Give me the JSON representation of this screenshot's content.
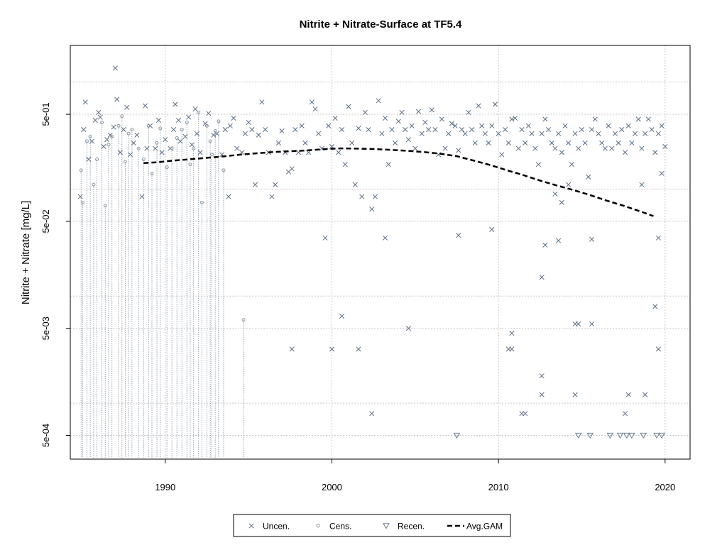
{
  "chart_data": {
    "type": "scatter",
    "title": "Nitrite + Nitrate-Surface at TF5.4",
    "xlabel": "",
    "ylabel": "Nitrite + Nitrate [mg/L]",
    "x_unit": "decimal year",
    "y_scale": "log",
    "xlim": [
      1984.3,
      2021.5
    ],
    "ylim": [
      0.0003,
      2.2
    ],
    "grid": true,
    "legend_position": "bottom-center",
    "x_ticks": [
      {
        "value": 1990,
        "label": "1990"
      },
      {
        "value": 2000,
        "label": "2000"
      },
      {
        "value": 2010,
        "label": "2010"
      },
      {
        "value": 2020,
        "label": "2020"
      }
    ],
    "y_ticks": [
      {
        "value": 0.0005,
        "label": "5e-04"
      },
      {
        "value": 0.005,
        "label": "5e-03"
      },
      {
        "value": 0.05,
        "label": "5e-02"
      },
      {
        "value": 0.5,
        "label": "5e-01"
      }
    ],
    "y_gridlines": [
      0.001,
      0.01,
      0.1,
      1
    ],
    "legend": [
      {
        "key": "uncensored",
        "label": "Uncen."
      },
      {
        "key": "censored",
        "label": "Cens."
      },
      {
        "key": "recensored",
        "label": "Recen."
      },
      {
        "key": "gam",
        "label": "Avg.GAM"
      }
    ],
    "series": [
      {
        "key": "uncensored",
        "marker": "x",
        "color": "#5a6e85",
        "points": [
          [
            1984.9,
            0.085
          ],
          [
            1985.1,
            0.36
          ],
          [
            1985.2,
            0.65
          ],
          [
            1985.4,
            0.19
          ],
          [
            1985.6,
            0.28
          ],
          [
            1985.8,
            0.44
          ],
          [
            1986.0,
            0.52
          ],
          [
            1986.1,
            0.47
          ],
          [
            1986.3,
            0.25
          ],
          [
            1986.5,
            0.29
          ],
          [
            1986.7,
            0.32
          ],
          [
            1986.9,
            0.38
          ],
          [
            1987.0,
            1.35
          ],
          [
            1987.1,
            0.69
          ],
          [
            1987.3,
            0.22
          ],
          [
            1987.5,
            0.36
          ],
          [
            1987.7,
            0.58
          ],
          [
            1987.9,
            0.21
          ],
          [
            1988.1,
            0.27
          ],
          [
            1988.3,
            0.32
          ],
          [
            1988.6,
            0.085
          ],
          [
            1988.8,
            0.6
          ],
          [
            1988.9,
            0.24
          ],
          [
            1989.1,
            0.39
          ],
          [
            1989.4,
            0.24
          ],
          [
            1989.6,
            0.44
          ],
          [
            1989.8,
            0.22
          ],
          [
            1990.0,
            0.29
          ],
          [
            1990.3,
            0.24
          ],
          [
            1990.5,
            0.36
          ],
          [
            1990.6,
            0.62
          ],
          [
            1990.8,
            0.44
          ],
          [
            1990.9,
            0.28
          ],
          [
            1991.2,
            0.31
          ],
          [
            1991.4,
            0.47
          ],
          [
            1991.6,
            0.26
          ],
          [
            1991.8,
            0.56
          ],
          [
            1991.9,
            0.33
          ],
          [
            1992.1,
            0.22
          ],
          [
            1992.4,
            0.41
          ],
          [
            1992.6,
            0.51
          ],
          [
            1992.9,
            0.32
          ],
          [
            1993.1,
            0.33
          ],
          [
            1993.4,
            0.21
          ],
          [
            1993.6,
            0.36
          ],
          [
            1993.8,
            0.085
          ],
          [
            1993.9,
            0.39
          ],
          [
            1994.1,
            0.46
          ],
          [
            1994.3,
            0.24
          ],
          [
            1994.6,
            0.22
          ],
          [
            1994.8,
            0.33
          ],
          [
            1995.0,
            0.42
          ],
          [
            1995.2,
            0.36
          ],
          [
            1995.4,
            0.11
          ],
          [
            1995.6,
            0.32
          ],
          [
            1995.8,
            0.65
          ],
          [
            1996.0,
            0.36
          ],
          [
            1996.2,
            0.22
          ],
          [
            1996.4,
            0.085
          ],
          [
            1996.6,
            0.11
          ],
          [
            1996.8,
            0.27
          ],
          [
            1997.0,
            0.35
          ],
          [
            1997.2,
            0.22
          ],
          [
            1997.4,
            0.145
          ],
          [
            1997.6,
            0.155
          ],
          [
            1997.8,
            0.36
          ],
          [
            1998.0,
            0.22
          ],
          [
            1998.2,
            0.39
          ],
          [
            1998.4,
            0.27
          ],
          [
            1998.6,
            0.22
          ],
          [
            1998.8,
            0.65
          ],
          [
            1999.0,
            0.56
          ],
          [
            1999.2,
            0.33
          ],
          [
            1999.4,
            0.24
          ],
          [
            1999.6,
            0.035
          ],
          [
            1999.8,
            0.39
          ],
          [
            2000.0,
            0.25
          ],
          [
            2000.2,
            0.46
          ],
          [
            2000.4,
            0.22
          ],
          [
            2000.6,
            0.36
          ],
          [
            2000.8,
            0.17
          ],
          [
            2001.0,
            0.59
          ],
          [
            2001.2,
            0.27
          ],
          [
            2001.4,
            0.11
          ],
          [
            2001.6,
            0.37
          ],
          [
            2001.8,
            0.085
          ],
          [
            2002.0,
            0.52
          ],
          [
            2002.2,
            0.36
          ],
          [
            2002.4,
            0.065
          ],
          [
            2002.6,
            0.085
          ],
          [
            2002.8,
            0.67
          ],
          [
            2003.0,
            0.33
          ],
          [
            2003.2,
            0.46
          ],
          [
            2003.4,
            0.17
          ],
          [
            2003.6,
            0.36
          ],
          [
            2003.8,
            0.27
          ],
          [
            2004.0,
            0.43
          ],
          [
            2004.2,
            0.52
          ],
          [
            2004.4,
            0.36
          ],
          [
            2004.6,
            0.29
          ],
          [
            2004.8,
            0.39
          ],
          [
            2005.0,
            0.24
          ],
          [
            2005.2,
            0.53
          ],
          [
            2005.4,
            0.33
          ],
          [
            2005.6,
            0.42
          ],
          [
            2005.8,
            0.36
          ],
          [
            2006.0,
            0.55
          ],
          [
            2006.2,
            0.36
          ],
          [
            2006.4,
            0.21
          ],
          [
            2006.6,
            0.45
          ],
          [
            2006.8,
            0.24
          ],
          [
            2007.0,
            0.33
          ],
          [
            2007.2,
            0.41
          ],
          [
            2007.4,
            0.39
          ],
          [
            2007.6,
            0.23
          ],
          [
            2007.8,
            0.36
          ],
          [
            2008.0,
            0.33
          ],
          [
            2008.2,
            0.52
          ],
          [
            2008.4,
            0.36
          ],
          [
            2008.6,
            0.27
          ],
          [
            2008.8,
            0.6
          ],
          [
            2009.0,
            0.39
          ],
          [
            2009.2,
            0.33
          ],
          [
            2009.4,
            0.27
          ],
          [
            2009.6,
            0.39
          ],
          [
            2009.8,
            0.62
          ],
          [
            2010.0,
            0.33
          ],
          [
            2010.2,
            0.21
          ],
          [
            2010.4,
            0.36
          ],
          [
            2010.6,
            0.27
          ],
          [
            2010.8,
            0.45
          ],
          [
            2011.0,
            0.46
          ],
          [
            2011.2,
            0.24
          ],
          [
            2011.4,
            0.36
          ],
          [
            2011.6,
            0.27
          ],
          [
            2011.8,
            0.39
          ],
          [
            2012.0,
            0.33
          ],
          [
            2012.2,
            0.24
          ],
          [
            2012.4,
            0.17
          ],
          [
            2012.6,
            0.33
          ],
          [
            2012.8,
            0.45
          ],
          [
            2013.0,
            0.36
          ],
          [
            2013.2,
            0.27
          ],
          [
            2013.4,
            0.24
          ],
          [
            2013.6,
            0.33
          ],
          [
            2013.8,
            0.22
          ],
          [
            2014.0,
            0.39
          ],
          [
            2014.2,
            0.27
          ],
          [
            2014.4,
            0.17
          ],
          [
            2014.6,
            0.33
          ],
          [
            2014.8,
            0.24
          ],
          [
            2015.0,
            0.36
          ],
          [
            2015.2,
            0.27
          ],
          [
            2015.4,
            0.13
          ],
          [
            2015.6,
            0.36
          ],
          [
            2015.8,
            0.45
          ],
          [
            2016.0,
            0.33
          ],
          [
            2016.2,
            0.27
          ],
          [
            2016.4,
            0.24
          ],
          [
            2016.6,
            0.39
          ],
          [
            2016.8,
            0.24
          ],
          [
            2017.0,
            0.33
          ],
          [
            2017.2,
            0.27
          ],
          [
            2017.4,
            0.36
          ],
          [
            2017.6,
            0.22
          ],
          [
            2017.8,
            0.39
          ],
          [
            2018.0,
            0.27
          ],
          [
            2018.2,
            0.33
          ],
          [
            2018.4,
            0.45
          ],
          [
            2018.6,
            0.24
          ],
          [
            2018.8,
            0.33
          ],
          [
            2019.0,
            0.45
          ],
          [
            2019.2,
            0.36
          ],
          [
            2019.4,
            0.22
          ],
          [
            2019.6,
            0.33
          ],
          [
            2019.8,
            0.39
          ],
          [
            2020.0,
            0.25
          ],
          [
            2004.6,
            0.005
          ],
          [
            2000.6,
            0.0065
          ],
          [
            2003.2,
            0.035
          ],
          [
            2007.6,
            0.037
          ],
          [
            2009.6,
            0.042
          ],
          [
            2012.6,
            0.015
          ],
          [
            2012.8,
            0.03
          ],
          [
            2013.4,
            0.09
          ],
          [
            2013.6,
            0.033
          ],
          [
            2013.8,
            0.075
          ],
          [
            2014.2,
            0.11
          ],
          [
            2015.6,
            0.034
          ],
          [
            2018.6,
            0.11
          ],
          [
            2019.6,
            0.035
          ],
          [
            2019.8,
            0.14
          ],
          [
            1997.6,
            0.0032
          ],
          [
            2000.0,
            0.0032
          ],
          [
            2001.6,
            0.0032
          ],
          [
            2010.6,
            0.0032
          ],
          [
            2010.8,
            0.0032
          ],
          [
            2010.8,
            0.0045
          ],
          [
            2012.6,
            0.0018
          ],
          [
            2012.6,
            0.0012
          ],
          [
            2014.6,
            0.0012
          ],
          [
            2014.6,
            0.0055
          ],
          [
            2014.8,
            0.0055
          ],
          [
            2015.6,
            0.0055
          ],
          [
            2017.8,
            0.0012
          ],
          [
            2018.8,
            0.0012
          ],
          [
            2019.4,
            0.008
          ],
          [
            2019.6,
            0.0032
          ],
          [
            2002.4,
            0.0008
          ],
          [
            2011.4,
            0.0008
          ],
          [
            2011.6,
            0.0008
          ],
          [
            2017.6,
            0.0008
          ]
        ]
      },
      {
        "key": "censored",
        "marker": "o",
        "color": "#8a9aa8",
        "points": [
          [
            1984.95,
            0.15
          ],
          [
            1985.05,
            0.075
          ],
          [
            1985.3,
            0.28
          ],
          [
            1985.5,
            0.31
          ],
          [
            1985.7,
            0.11
          ],
          [
            1985.9,
            0.19
          ],
          [
            1986.2,
            0.42
          ],
          [
            1986.4,
            0.07
          ],
          [
            1986.6,
            0.26
          ],
          [
            1986.8,
            0.31
          ],
          [
            1987.2,
            0.39
          ],
          [
            1987.4,
            0.48
          ],
          [
            1987.6,
            0.18
          ],
          [
            1987.8,
            0.33
          ],
          [
            1988.0,
            0.36
          ],
          [
            1988.4,
            0.24
          ],
          [
            1988.7,
            0.19
          ],
          [
            1989.0,
            0.39
          ],
          [
            1989.2,
            0.14
          ],
          [
            1989.5,
            0.27
          ],
          [
            1989.7,
            0.37
          ],
          [
            1990.1,
            0.16
          ],
          [
            1990.4,
            0.24
          ],
          [
            1990.7,
            0.3
          ],
          [
            1991.0,
            0.36
          ],
          [
            1991.3,
            0.42
          ],
          [
            1991.5,
            0.17
          ],
          [
            1991.7,
            0.24
          ],
          [
            1992.0,
            0.52
          ],
          [
            1992.2,
            0.075
          ],
          [
            1992.5,
            0.39
          ],
          [
            1992.7,
            0.28
          ],
          [
            1992.8,
            0.21
          ],
          [
            1993.0,
            0.35
          ],
          [
            1993.2,
            0.43
          ],
          [
            1993.5,
            0.15
          ],
          [
            1994.7,
            0.006
          ]
        ]
      },
      {
        "key": "recensored",
        "marker": "triangle-down",
        "color": "#6a7c8e",
        "points": [
          [
            2007.5,
            0.0005
          ],
          [
            2014.8,
            0.0005
          ],
          [
            2015.5,
            0.0005
          ],
          [
            2016.7,
            0.0005
          ],
          [
            2017.3,
            0.0005
          ],
          [
            2017.7,
            0.0005
          ],
          [
            2018.0,
            0.0005
          ],
          [
            2018.7,
            0.0005
          ],
          [
            2019.5,
            0.0005
          ],
          [
            2019.8,
            0.0005
          ]
        ]
      },
      {
        "key": "gam",
        "marker": "dashed-line",
        "color": "#000000",
        "points": [
          [
            1988.7,
            0.175
          ],
          [
            1989.5,
            0.178
          ],
          [
            1990.5,
            0.185
          ],
          [
            1991.5,
            0.19
          ],
          [
            1992.5,
            0.196
          ],
          [
            1993.5,
            0.202
          ],
          [
            1994.5,
            0.21
          ],
          [
            1995.5,
            0.216
          ],
          [
            1996.5,
            0.222
          ],
          [
            1997.5,
            0.226
          ],
          [
            1998.5,
            0.23
          ],
          [
            1999.5,
            0.236
          ],
          [
            2000.5,
            0.24
          ],
          [
            2001.5,
            0.239
          ],
          [
            2002.5,
            0.237
          ],
          [
            2003.5,
            0.233
          ],
          [
            2004.5,
            0.228
          ],
          [
            2005.5,
            0.222
          ],
          [
            2006.5,
            0.214
          ],
          [
            2007.5,
            0.203
          ],
          [
            2008.5,
            0.185
          ],
          [
            2009.5,
            0.168
          ],
          [
            2010.5,
            0.15
          ],
          [
            2011.5,
            0.135
          ],
          [
            2012.5,
            0.12
          ],
          [
            2013.5,
            0.108
          ],
          [
            2014.5,
            0.098
          ],
          [
            2015.5,
            0.088
          ],
          [
            2016.5,
            0.078
          ],
          [
            2017.5,
            0.07
          ],
          [
            2018.5,
            0.062
          ],
          [
            2019.3,
            0.056
          ]
        ]
      }
    ]
  }
}
